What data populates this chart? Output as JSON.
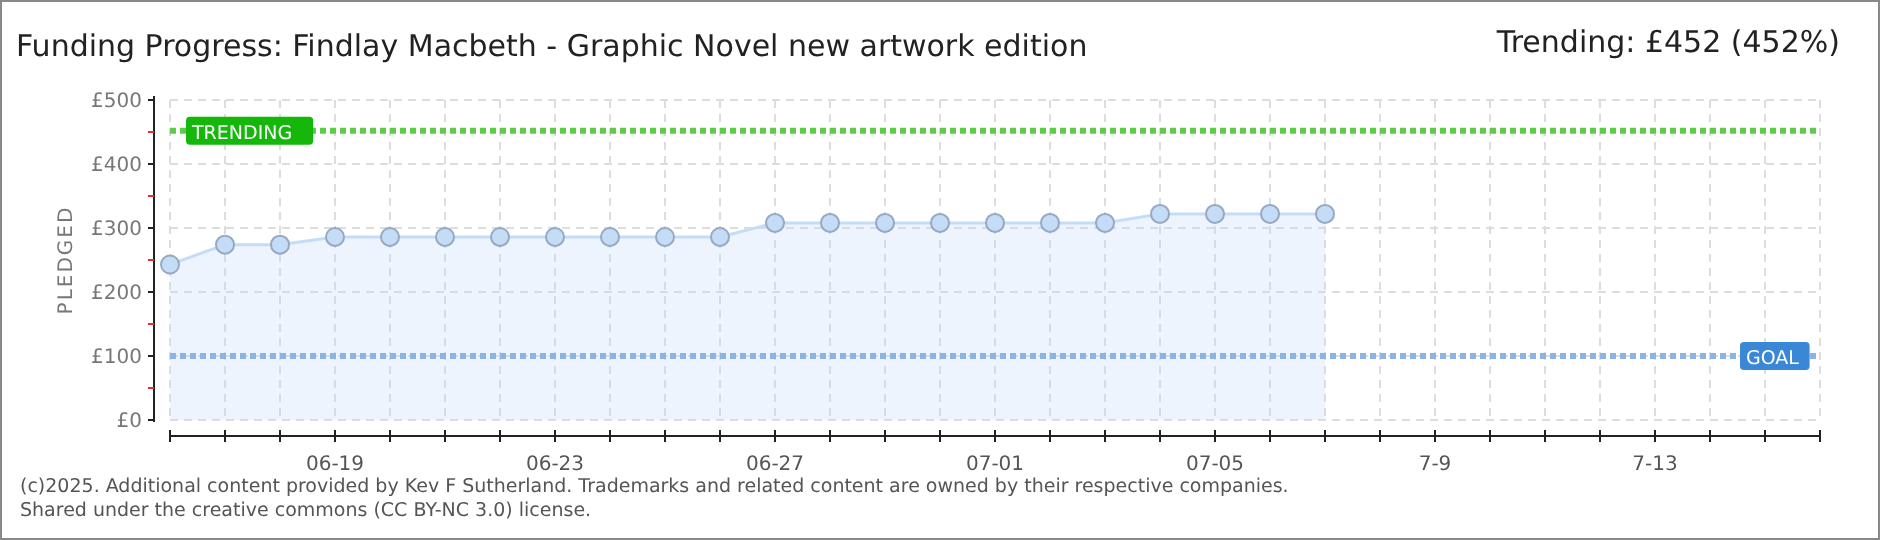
{
  "chart_data": {
    "type": "area",
    "title": "Funding Progress: Findlay Macbeth - Graphic Novel new artwork edition",
    "subtitle": "Trending:  £452 (452%)",
    "ylabel": "PLEDGED",
    "x": [
      "--06-16",
      "--06-17",
      "--06-18",
      "--06-19",
      "--06-20",
      "--06-21",
      "--06-22",
      "--06-23",
      "--06-24",
      "--06-25",
      "--06-26",
      "--06-27",
      "--06-28",
      "--06-29",
      "--06-30",
      "--07-01",
      "--07-02",
      "--07-03",
      "--07-04",
      "--07-05",
      "--07-06",
      "--07-07"
    ],
    "series": [
      {
        "color": "#c5dcf7",
        "values": [
          243,
          274,
          274,
          286,
          286,
          286,
          286,
          286,
          286,
          286,
          286,
          308,
          308,
          308,
          308,
          308,
          308,
          308,
          322,
          322,
          322,
          322
        ]
      }
    ],
    "marker": "circle",
    "grid": true,
    "xlim": [
      "--06-16",
      "--07-16"
    ],
    "xticks": [
      {
        "value": "--06-16",
        "label": null
      },
      {
        "value": "--06-17",
        "label": null
      },
      {
        "value": "--06-18",
        "label": null
      },
      {
        "value": "--06-19",
        "label": "06-19"
      },
      {
        "value": "--06-20",
        "label": null
      },
      {
        "value": "--06-21",
        "label": null
      },
      {
        "value": "--06-22",
        "label": null
      },
      {
        "value": "--06-23",
        "label": "06-23"
      },
      {
        "value": "--06-24",
        "label": null
      },
      {
        "value": "--06-25",
        "label": null
      },
      {
        "value": "--06-26",
        "label": null
      },
      {
        "value": "--06-27",
        "label": "06-27"
      },
      {
        "value": "--06-28",
        "label": null
      },
      {
        "value": "--06-29",
        "label": null
      },
      {
        "value": "--06-30",
        "label": null
      },
      {
        "value": "--07-01",
        "label": "07-01"
      },
      {
        "value": "--07-02",
        "label": null
      },
      {
        "value": "--07-03",
        "label": null
      },
      {
        "value": "--07-04",
        "label": null
      },
      {
        "value": "--07-05",
        "label": "07-05"
      },
      {
        "value": "--07-06",
        "label": null
      },
      {
        "value": "--07-07",
        "label": null
      },
      {
        "value": "--07-08",
        "label": null
      },
      {
        "value": "--07-09",
        "label": "7-9"
      },
      {
        "value": "--07-10",
        "label": null
      },
      {
        "value": "--07-11",
        "label": null
      },
      {
        "value": "--07-12",
        "label": null
      },
      {
        "value": "--07-13",
        "label": "7-13"
      },
      {
        "value": "--07-14",
        "label": null
      },
      {
        "value": "--07-15",
        "label": null
      },
      {
        "value": "--07-16",
        "label": null
      }
    ],
    "ylim": [
      0,
      500
    ],
    "yticks": [
      {
        "value": 0,
        "label": "£0"
      },
      {
        "value": 50,
        "label": null
      },
      {
        "value": 100,
        "label": "£100"
      },
      {
        "value": 150,
        "label": null
      },
      {
        "value": 200,
        "label": "£200"
      },
      {
        "value": 250,
        "label": null
      },
      {
        "value": 300,
        "label": "£300"
      },
      {
        "value": 350,
        "label": null
      },
      {
        "value": 400,
        "label": "£400"
      },
      {
        "value": 450,
        "label": null
      },
      {
        "value": 500,
        "label": "£500"
      }
    ],
    "ref_lines": [
      {
        "axis": "y",
        "value": 452,
        "label": "TRENDING",
        "color": "#5ccc4a",
        "line_style": "dotted"
      },
      {
        "axis": "y",
        "value": 100,
        "label": "GOAL",
        "color": "#8ab4e8",
        "line_style": "dotted"
      }
    ],
    "annotations": [
      "(c)2025. Additional content provided by Kev F Sutherland. Trademarks and related content are owned by their respective companies.",
      "Shared under the creative commons (CC BY-NC 3.0) license."
    ]
  }
}
